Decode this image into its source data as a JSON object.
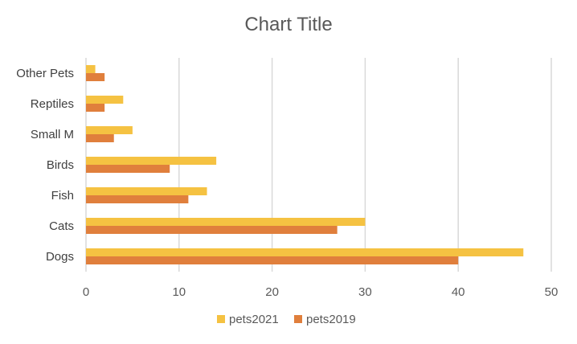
{
  "chart_data": {
    "type": "bar",
    "orientation": "horizontal",
    "title": "Chart Title",
    "categories": [
      "Dogs",
      "Cats",
      "Fish",
      "Birds",
      "Small M",
      "Reptiles",
      "Other Pets"
    ],
    "series": [
      {
        "name": "pets2021",
        "color": "#f5c242",
        "values": [
          47,
          30,
          13,
          14,
          5,
          4,
          1
        ]
      },
      {
        "name": "pets2019",
        "color": "#e07f3c",
        "values": [
          40,
          27,
          11,
          9,
          3,
          2,
          2
        ]
      }
    ],
    "xlim": [
      0,
      50
    ],
    "xticks": [
      "0",
      "10",
      "20",
      "30",
      "40",
      "50"
    ],
    "grid": true,
    "legend_position": "bottom"
  }
}
